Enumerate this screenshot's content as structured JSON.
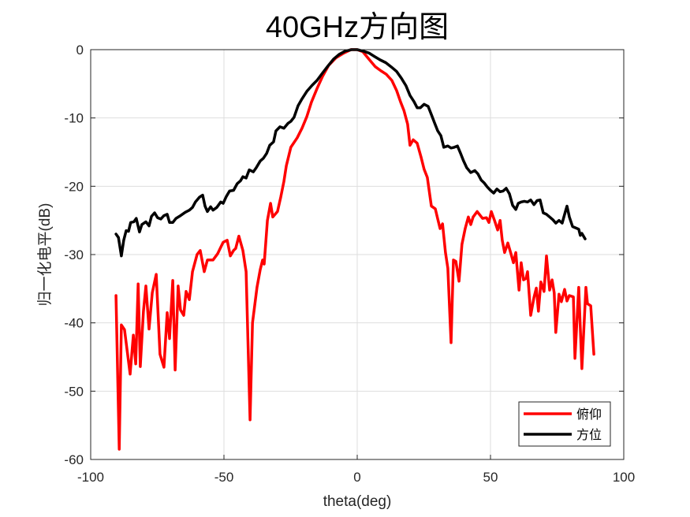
{
  "chart_data": {
    "type": "line",
    "title": "40GHz方向图",
    "xlabel": "theta(deg)",
    "ylabel": "归一化电平(dB)",
    "xlim": [
      -100,
      100
    ],
    "ylim": [
      -60,
      0
    ],
    "xticks": [
      -100,
      -50,
      0,
      50,
      100
    ],
    "yticks": [
      0,
      -10,
      -20,
      -30,
      -40,
      -50,
      -60
    ],
    "grid": true,
    "legend_position": "lower right",
    "series": [
      {
        "name": "俯仰",
        "color": "#ff0000",
        "points": [
          [
            -90.5,
            -36.0
          ],
          [
            -89.3,
            -58.5
          ],
          [
            -88.5,
            -40.3
          ],
          [
            -87.3,
            -41.0
          ],
          [
            -85.2,
            -47.5
          ],
          [
            -84.0,
            -41.8
          ],
          [
            -83.1,
            -46.0
          ],
          [
            -82.2,
            -34.3
          ],
          [
            -81.4,
            -46.4
          ],
          [
            -80.2,
            -38.3
          ],
          [
            -79.3,
            -34.6
          ],
          [
            -78.1,
            -40.9
          ],
          [
            -76.9,
            -35.6
          ],
          [
            -75.4,
            -32.9
          ],
          [
            -74.0,
            -44.6
          ],
          [
            -72.5,
            -46.5
          ],
          [
            -71.3,
            -38.5
          ],
          [
            -70.4,
            -42.3
          ],
          [
            -69.2,
            -33.8
          ],
          [
            -68.3,
            -46.9
          ],
          [
            -67.2,
            -34.6
          ],
          [
            -66.3,
            -38.1
          ],
          [
            -65.1,
            -38.9
          ],
          [
            -64.2,
            -35.4
          ],
          [
            -63.0,
            -36.6
          ],
          [
            -61.8,
            -32.5
          ],
          [
            -60.1,
            -30.0
          ],
          [
            -58.9,
            -29.4
          ],
          [
            -57.4,
            -32.5
          ],
          [
            -56.2,
            -30.8
          ],
          [
            -54.1,
            -30.8
          ],
          [
            -52.4,
            -29.9
          ],
          [
            -50.3,
            -28.2
          ],
          [
            -48.8,
            -27.9
          ],
          [
            -47.6,
            -30.2
          ],
          [
            -46.4,
            -29.4
          ],
          [
            -45.6,
            -29.1
          ],
          [
            -44.4,
            -27.3
          ],
          [
            -42.9,
            -29.4
          ],
          [
            -41.7,
            -32.5
          ],
          [
            -40.2,
            -54.2
          ],
          [
            -39.3,
            -40.0
          ],
          [
            -37.6,
            -34.8
          ],
          [
            -36.4,
            -32.2
          ],
          [
            -35.5,
            -30.8
          ],
          [
            -34.9,
            -31.4
          ],
          [
            -33.7,
            -25.0
          ],
          [
            -32.5,
            -22.5
          ],
          [
            -31.7,
            -24.5
          ],
          [
            -29.9,
            -23.7
          ],
          [
            -28.7,
            -21.6
          ],
          [
            -27.5,
            -19.3
          ],
          [
            -26.6,
            -17.0
          ],
          [
            -24.9,
            -14.3
          ],
          [
            -22.5,
            -12.9
          ],
          [
            -20.7,
            -11.5
          ],
          [
            -18.9,
            -9.8
          ],
          [
            -17.2,
            -7.7
          ],
          [
            -15.1,
            -5.7
          ],
          [
            -13.0,
            -3.9
          ],
          [
            -10.7,
            -2.3
          ],
          [
            -8.0,
            -1.2
          ],
          [
            -5.0,
            -0.5
          ],
          [
            -2.4,
            0.0
          ],
          [
            0.0,
            0.0
          ],
          [
            2.1,
            -0.3
          ],
          [
            4.4,
            -1.4
          ],
          [
            6.8,
            -2.5
          ],
          [
            8.9,
            -3.1
          ],
          [
            10.9,
            -3.6
          ],
          [
            13.0,
            -4.5
          ],
          [
            14.8,
            -6.0
          ],
          [
            16.3,
            -7.7
          ],
          [
            17.5,
            -8.9
          ],
          [
            18.9,
            -10.9
          ],
          [
            19.8,
            -14.0
          ],
          [
            21.0,
            -13.2
          ],
          [
            22.5,
            -13.7
          ],
          [
            24.0,
            -15.8
          ],
          [
            25.1,
            -17.5
          ],
          [
            26.3,
            -18.7
          ],
          [
            27.8,
            -22.9
          ],
          [
            29.3,
            -23.3
          ],
          [
            30.2,
            -24.8
          ],
          [
            31.1,
            -26.2
          ],
          [
            32.0,
            -25.5
          ],
          [
            33.1,
            -29.7
          ],
          [
            34.0,
            -32.0
          ],
          [
            35.2,
            -42.9
          ],
          [
            36.1,
            -30.8
          ],
          [
            37.0,
            -31.0
          ],
          [
            38.2,
            -33.9
          ],
          [
            39.3,
            -28.5
          ],
          [
            40.5,
            -26.2
          ],
          [
            41.7,
            -24.5
          ],
          [
            42.6,
            -25.6
          ],
          [
            43.5,
            -24.5
          ],
          [
            45.0,
            -23.7
          ],
          [
            47.0,
            -24.7
          ],
          [
            48.5,
            -24.6
          ],
          [
            49.4,
            -25.3
          ],
          [
            50.3,
            -23.7
          ],
          [
            51.5,
            -25.0
          ],
          [
            52.7,
            -26.4
          ],
          [
            53.6,
            -25.0
          ],
          [
            54.4,
            -27.9
          ],
          [
            55.3,
            -29.7
          ],
          [
            56.5,
            -28.3
          ],
          [
            57.7,
            -29.9
          ],
          [
            58.6,
            -31.2
          ],
          [
            59.5,
            -29.7
          ],
          [
            60.7,
            -35.2
          ],
          [
            61.5,
            -31.2
          ],
          [
            62.4,
            -33.7
          ],
          [
            63.3,
            -33.5
          ],
          [
            63.9,
            -32.5
          ],
          [
            65.1,
            -38.9
          ],
          [
            66.3,
            -36.3
          ],
          [
            67.2,
            -34.9
          ],
          [
            68.0,
            -38.3
          ],
          [
            68.9,
            -34.0
          ],
          [
            70.1,
            -35.4
          ],
          [
            71.0,
            -30.2
          ],
          [
            72.2,
            -35.2
          ],
          [
            73.1,
            -33.7
          ],
          [
            73.9,
            -35.6
          ],
          [
            74.5,
            -41.4
          ],
          [
            75.7,
            -35.8
          ],
          [
            76.6,
            -36.9
          ],
          [
            77.8,
            -35.1
          ],
          [
            78.7,
            -36.8
          ],
          [
            79.6,
            -36.0
          ],
          [
            81.1,
            -36.2
          ],
          [
            81.7,
            -45.2
          ],
          [
            83.1,
            -34.8
          ],
          [
            84.3,
            -46.7
          ],
          [
            85.8,
            -34.8
          ],
          [
            86.4,
            -37.2
          ],
          [
            87.6,
            -37.5
          ],
          [
            88.8,
            -44.6
          ]
        ]
      },
      {
        "name": "方位",
        "color": "#000000",
        "points": [
          [
            -90.5,
            -27.0
          ],
          [
            -89.6,
            -27.5
          ],
          [
            -88.5,
            -30.2
          ],
          [
            -87.6,
            -27.9
          ],
          [
            -86.7,
            -26.5
          ],
          [
            -85.8,
            -26.6
          ],
          [
            -85.0,
            -25.3
          ],
          [
            -83.8,
            -25.2
          ],
          [
            -82.9,
            -24.7
          ],
          [
            -81.7,
            -26.7
          ],
          [
            -80.8,
            -25.6
          ],
          [
            -79.3,
            -25.2
          ],
          [
            -78.1,
            -25.8
          ],
          [
            -77.2,
            -24.4
          ],
          [
            -76.0,
            -23.9
          ],
          [
            -74.9,
            -24.6
          ],
          [
            -73.7,
            -24.8
          ],
          [
            -72.5,
            -24.3
          ],
          [
            -71.3,
            -24.1
          ],
          [
            -70.4,
            -25.3
          ],
          [
            -69.2,
            -25.3
          ],
          [
            -68.0,
            -24.7
          ],
          [
            -66.3,
            -24.3
          ],
          [
            -64.5,
            -23.8
          ],
          [
            -63.0,
            -23.5
          ],
          [
            -61.8,
            -23.1
          ],
          [
            -60.7,
            -22.3
          ],
          [
            -59.2,
            -21.6
          ],
          [
            -58.0,
            -21.3
          ],
          [
            -57.1,
            -22.9
          ],
          [
            -56.2,
            -23.7
          ],
          [
            -55.0,
            -23.0
          ],
          [
            -54.1,
            -23.5
          ],
          [
            -52.7,
            -23.1
          ],
          [
            -51.2,
            -22.3
          ],
          [
            -50.3,
            -22.5
          ],
          [
            -49.1,
            -21.5
          ],
          [
            -47.9,
            -20.7
          ],
          [
            -46.4,
            -20.6
          ],
          [
            -45.0,
            -19.6
          ],
          [
            -43.8,
            -19.2
          ],
          [
            -42.9,
            -18.6
          ],
          [
            -41.7,
            -18.8
          ],
          [
            -40.5,
            -17.6
          ],
          [
            -39.0,
            -17.9
          ],
          [
            -37.9,
            -17.3
          ],
          [
            -36.4,
            -16.3
          ],
          [
            -35.2,
            -15.9
          ],
          [
            -34.0,
            -15.2
          ],
          [
            -32.8,
            -14.0
          ],
          [
            -31.4,
            -13.5
          ],
          [
            -30.5,
            -11.9
          ],
          [
            -29.0,
            -11.3
          ],
          [
            -27.5,
            -11.5
          ],
          [
            -26.0,
            -10.8
          ],
          [
            -24.9,
            -10.5
          ],
          [
            -23.7,
            -9.9
          ],
          [
            -22.2,
            -8.2
          ],
          [
            -20.7,
            -7.2
          ],
          [
            -18.9,
            -6.1
          ],
          [
            -16.9,
            -5.2
          ],
          [
            -15.1,
            -4.5
          ],
          [
            -13.0,
            -3.4
          ],
          [
            -11.0,
            -2.4
          ],
          [
            -8.9,
            -1.4
          ],
          [
            -6.8,
            -0.7
          ],
          [
            -4.4,
            -0.2
          ],
          [
            -2.1,
            0.0
          ],
          [
            0.0,
            0.0
          ],
          [
            2.1,
            -0.2
          ],
          [
            4.4,
            -0.5
          ],
          [
            6.5,
            -1.0
          ],
          [
            8.6,
            -1.5
          ],
          [
            10.7,
            -1.9
          ],
          [
            12.7,
            -2.5
          ],
          [
            14.8,
            -3.2
          ],
          [
            16.6,
            -4.2
          ],
          [
            18.3,
            -5.3
          ],
          [
            19.8,
            -6.7
          ],
          [
            21.3,
            -7.6
          ],
          [
            22.5,
            -8.5
          ],
          [
            23.7,
            -8.5
          ],
          [
            25.1,
            -8.0
          ],
          [
            26.6,
            -8.3
          ],
          [
            27.8,
            -9.5
          ],
          [
            29.0,
            -10.7
          ],
          [
            30.2,
            -11.9
          ],
          [
            31.4,
            -12.6
          ],
          [
            32.5,
            -14.3
          ],
          [
            34.0,
            -14.1
          ],
          [
            35.2,
            -14.4
          ],
          [
            36.4,
            -14.3
          ],
          [
            37.6,
            -14.1
          ],
          [
            38.8,
            -15.2
          ],
          [
            39.9,
            -16.3
          ],
          [
            41.1,
            -17.3
          ],
          [
            42.6,
            -18.0
          ],
          [
            44.1,
            -17.7
          ],
          [
            45.3,
            -18.2
          ],
          [
            46.5,
            -19.1
          ],
          [
            47.6,
            -19.5
          ],
          [
            48.8,
            -20.1
          ],
          [
            50.0,
            -20.6
          ],
          [
            51.2,
            -21.0
          ],
          [
            52.4,
            -20.4
          ],
          [
            53.6,
            -20.8
          ],
          [
            54.7,
            -20.7
          ],
          [
            55.9,
            -20.3
          ],
          [
            57.1,
            -21.1
          ],
          [
            58.3,
            -22.8
          ],
          [
            59.5,
            -23.4
          ],
          [
            60.4,
            -22.5
          ],
          [
            61.5,
            -22.3
          ],
          [
            62.7,
            -22.2
          ],
          [
            63.9,
            -22.3
          ],
          [
            65.1,
            -22.0
          ],
          [
            66.3,
            -22.7
          ],
          [
            67.5,
            -22.1
          ],
          [
            68.6,
            -22.0
          ],
          [
            69.8,
            -23.9
          ],
          [
            71.0,
            -24.1
          ],
          [
            72.2,
            -24.5
          ],
          [
            73.4,
            -24.9
          ],
          [
            74.5,
            -25.4
          ],
          [
            75.7,
            -25.0
          ],
          [
            76.9,
            -25.4
          ],
          [
            78.1,
            -23.7
          ],
          [
            78.7,
            -22.9
          ],
          [
            79.6,
            -24.5
          ],
          [
            80.8,
            -25.9
          ],
          [
            82.0,
            -26.1
          ],
          [
            83.1,
            -26.3
          ],
          [
            83.7,
            -27.2
          ],
          [
            84.3,
            -26.9
          ],
          [
            85.5,
            -27.7
          ]
        ]
      }
    ],
    "legend": [
      {
        "label": "俯仰",
        "color": "#ff0000"
      },
      {
        "label": "方位",
        "color": "#000000"
      }
    ]
  }
}
